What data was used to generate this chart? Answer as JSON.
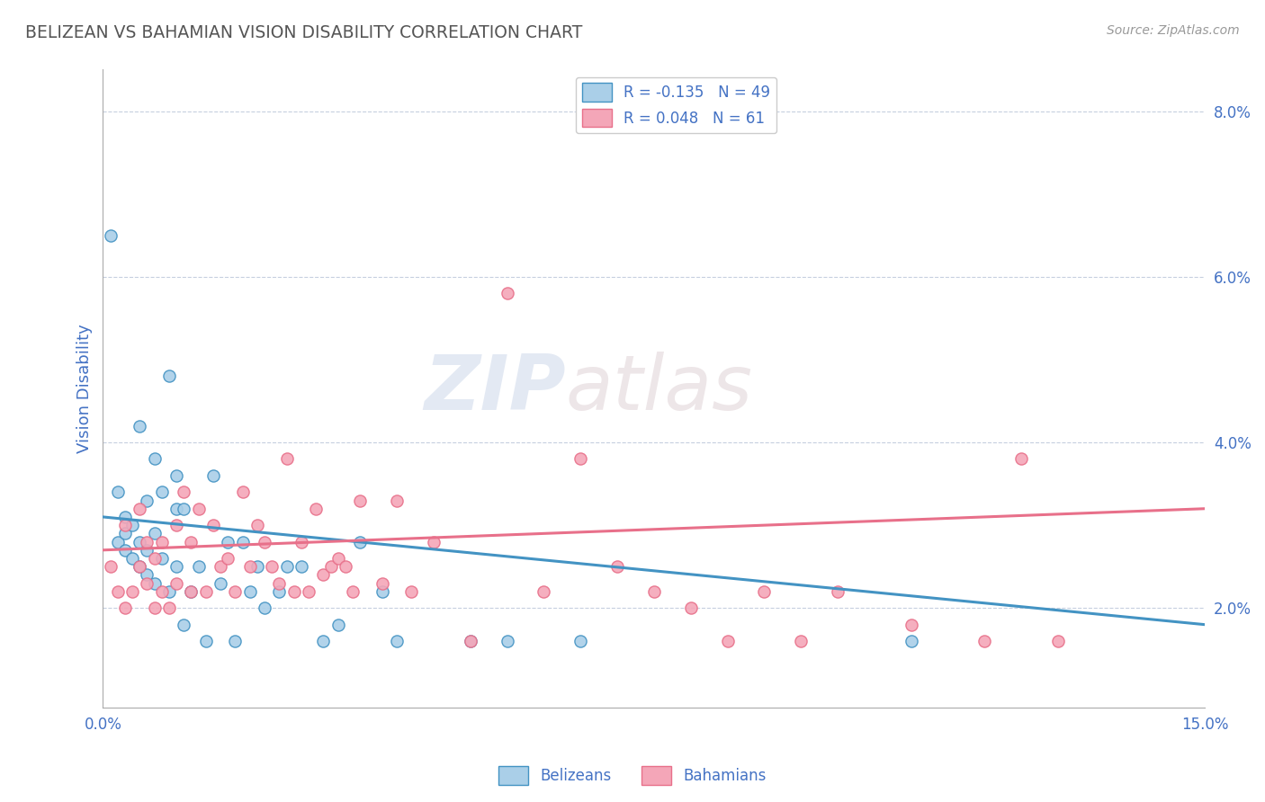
{
  "title": "BELIZEAN VS BAHAMIAN VISION DISABILITY CORRELATION CHART",
  "source": "Source: ZipAtlas.com",
  "ylabel": "Vision Disability",
  "xlim": [
    0.0,
    0.15
  ],
  "ylim": [
    0.008,
    0.085
  ],
  "yticks": [
    0.02,
    0.04,
    0.06,
    0.08
  ],
  "ytick_labels": [
    "2.0%",
    "4.0%",
    "6.0%",
    "8.0%"
  ],
  "xticks": [
    0.0,
    0.15
  ],
  "xtick_labels": [
    "0.0%",
    "15.0%"
  ],
  "belizean_R": -0.135,
  "belizean_N": 49,
  "bahamian_R": 0.048,
  "bahamian_N": 61,
  "belizean_color": "#aacfe8",
  "bahamian_color": "#f4a6b8",
  "belizean_line_color": "#4393c3",
  "bahamian_line_color": "#e8708a",
  "title_color": "#555555",
  "axis_label_color": "#4472c4",
  "tick_label_color": "#4472c4",
  "watermark_zip": "ZIP",
  "watermark_atlas": "atlas",
  "belizean_x": [
    0.001,
    0.002,
    0.002,
    0.003,
    0.003,
    0.003,
    0.004,
    0.004,
    0.005,
    0.005,
    0.005,
    0.006,
    0.006,
    0.006,
    0.007,
    0.007,
    0.007,
    0.008,
    0.008,
    0.009,
    0.009,
    0.01,
    0.01,
    0.01,
    0.011,
    0.011,
    0.012,
    0.013,
    0.014,
    0.015,
    0.016,
    0.017,
    0.018,
    0.019,
    0.02,
    0.021,
    0.022,
    0.024,
    0.025,
    0.027,
    0.03,
    0.032,
    0.035,
    0.038,
    0.04,
    0.05,
    0.055,
    0.065,
    0.11
  ],
  "belizean_y": [
    0.065,
    0.028,
    0.034,
    0.027,
    0.029,
    0.031,
    0.026,
    0.03,
    0.025,
    0.028,
    0.042,
    0.024,
    0.027,
    0.033,
    0.023,
    0.029,
    0.038,
    0.026,
    0.034,
    0.022,
    0.048,
    0.025,
    0.032,
    0.036,
    0.032,
    0.018,
    0.022,
    0.025,
    0.016,
    0.036,
    0.023,
    0.028,
    0.016,
    0.028,
    0.022,
    0.025,
    0.02,
    0.022,
    0.025,
    0.025,
    0.016,
    0.018,
    0.028,
    0.022,
    0.016,
    0.016,
    0.016,
    0.016,
    0.016
  ],
  "bahamian_x": [
    0.001,
    0.002,
    0.003,
    0.003,
    0.004,
    0.005,
    0.005,
    0.006,
    0.006,
    0.007,
    0.007,
    0.008,
    0.008,
    0.009,
    0.01,
    0.01,
    0.011,
    0.012,
    0.012,
    0.013,
    0.014,
    0.015,
    0.016,
    0.017,
    0.018,
    0.019,
    0.02,
    0.021,
    0.022,
    0.023,
    0.024,
    0.025,
    0.026,
    0.027,
    0.028,
    0.029,
    0.03,
    0.031,
    0.032,
    0.033,
    0.034,
    0.035,
    0.038,
    0.04,
    0.042,
    0.045,
    0.05,
    0.055,
    0.06,
    0.065,
    0.07,
    0.075,
    0.08,
    0.085,
    0.09,
    0.095,
    0.1,
    0.11,
    0.12,
    0.125,
    0.13
  ],
  "bahamian_y": [
    0.025,
    0.022,
    0.02,
    0.03,
    0.022,
    0.025,
    0.032,
    0.023,
    0.028,
    0.02,
    0.026,
    0.022,
    0.028,
    0.02,
    0.023,
    0.03,
    0.034,
    0.028,
    0.022,
    0.032,
    0.022,
    0.03,
    0.025,
    0.026,
    0.022,
    0.034,
    0.025,
    0.03,
    0.028,
    0.025,
    0.023,
    0.038,
    0.022,
    0.028,
    0.022,
    0.032,
    0.024,
    0.025,
    0.026,
    0.025,
    0.022,
    0.033,
    0.023,
    0.033,
    0.022,
    0.028,
    0.016,
    0.058,
    0.022,
    0.038,
    0.025,
    0.022,
    0.02,
    0.016,
    0.022,
    0.016,
    0.022,
    0.018,
    0.016,
    0.038,
    0.016
  ],
  "bel_trend_x": [
    0.0,
    0.15
  ],
  "bel_trend_y": [
    0.031,
    0.018
  ],
  "bah_trend_x": [
    0.0,
    0.15
  ],
  "bah_trend_y": [
    0.027,
    0.032
  ]
}
